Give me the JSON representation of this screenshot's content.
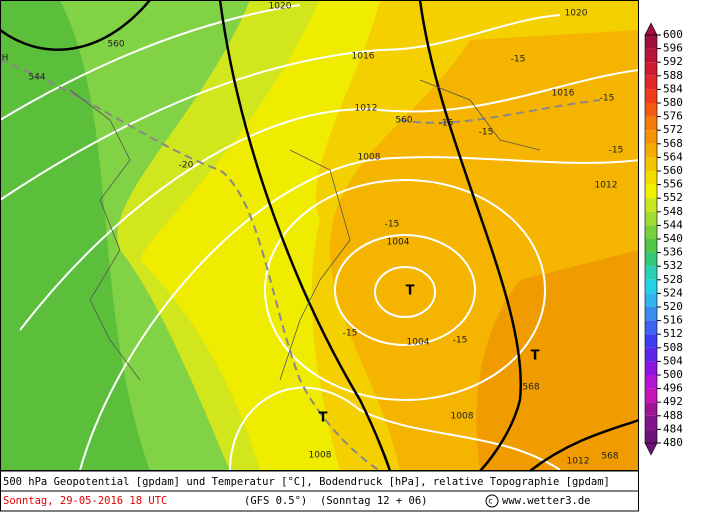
{
  "map": {
    "labels": [
      "1020",
      "560",
      "544",
      "-20",
      "1016",
      "1012",
      "560",
      "1008",
      "-15",
      "1004",
      "T",
      "-15",
      "1004",
      "-15",
      "T",
      "568",
      "T",
      "1008",
      "1008",
      "1020",
      "-15",
      "1016",
      "-15",
      "-15",
      "-15",
      "-15",
      "1012",
      "1012",
      "568",
      "H"
    ]
  },
  "colorbar": {
    "ticks": [
      600,
      596,
      592,
      588,
      584,
      580,
      576,
      572,
      568,
      564,
      560,
      556,
      552,
      548,
      544,
      540,
      536,
      532,
      528,
      524,
      520,
      516,
      512,
      508,
      504,
      500,
      496,
      492,
      488,
      484,
      480
    ],
    "colors": [
      "#a0103c",
      "#b81438",
      "#cc1a30",
      "#e02828",
      "#f03c1c",
      "#f55a10",
      "#f57a08",
      "#f59400",
      "#f5ac00",
      "#f5c400",
      "#f5dc00",
      "#f0f000",
      "#c8e81e",
      "#a0dc32",
      "#78d03c",
      "#50c846",
      "#32c878",
      "#28d2b4",
      "#28d2e6",
      "#32b4f0",
      "#3c8cf0",
      "#3c64f0",
      "#3c3cf0",
      "#5a28e6",
      "#8c14dc",
      "#b414d2",
      "#c814b4",
      "#a01496",
      "#82148c",
      "#6e1478"
    ]
  },
  "footer": {
    "line1": "500 hPa Geopotential [gpdam] und Temperatur [°C], Bodendruck [hPa], relative Topographie [gpdam]",
    "date": "Sonntag, 29-05-2016  18 UTC",
    "model": "(GFS 0.5°)",
    "run": "(Sonntag 12 + 06)",
    "site": "www.wetter3.de"
  }
}
